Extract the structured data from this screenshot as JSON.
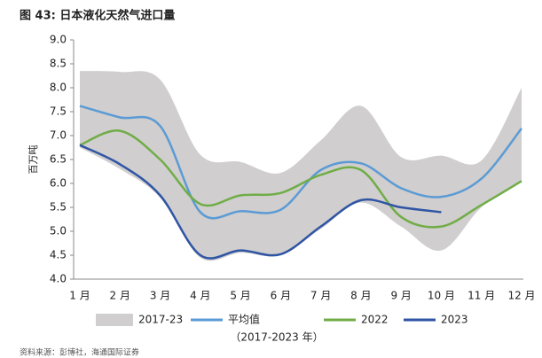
{
  "chart_data": {
    "type": "line",
    "title": "图 43: 日本液化天然气进口量",
    "y_label": "百万吨",
    "subtitle": "（2017-2023 年）",
    "source": "资料来源：彭博社，海通国际证券",
    "categories": [
      "1 月",
      "2 月",
      "3 月",
      "4 月",
      "5 月",
      "6 月",
      "7 月",
      "8 月",
      "9 月",
      "10 月",
      "11 月",
      "12 月"
    ],
    "ylim": [
      4.0,
      9.0
    ],
    "yticks": [
      {
        "value": 4.0,
        "label": "4.0"
      },
      4.5,
      {
        "value": 5.0,
        "label": "5.0"
      },
      5.5,
      {
        "value": 6.0,
        "label": "6.0"
      },
      6.5,
      {
        "value": 7.0,
        "label": "7.0"
      },
      7.5,
      {
        "value": 8.0,
        "label": "8.0"
      },
      8.5,
      {
        "value": 9.0,
        "label": "9.0"
      }
    ],
    "band": {
      "name": "2017-23",
      "color": "#d0cece",
      "high": [
        8.35,
        8.33,
        8.17,
        6.6,
        6.45,
        6.22,
        6.9,
        7.62,
        6.55,
        6.58,
        6.48,
        8.0
      ],
      "low": [
        6.75,
        6.3,
        5.7,
        4.45,
        4.55,
        4.5,
        5.05,
        5.6,
        5.1,
        4.6,
        5.5,
        6.05
      ]
    },
    "series": [
      {
        "name": "平均值",
        "color": "#5b9bd5",
        "values": [
          7.62,
          7.38,
          7.2,
          5.4,
          5.42,
          5.45,
          6.28,
          6.42,
          5.9,
          5.72,
          6.1,
          7.15
        ]
      },
      {
        "name": "2022",
        "color": "#70ad47",
        "values": [
          6.8,
          7.1,
          6.5,
          5.57,
          5.75,
          5.8,
          6.18,
          6.28,
          5.3,
          5.1,
          5.55,
          6.05
        ]
      },
      {
        "name": "2023",
        "color": "#2f55a4",
        "values": [
          6.8,
          6.4,
          5.75,
          4.5,
          4.6,
          4.52,
          5.1,
          5.65,
          5.5,
          5.4,
          null,
          null
        ]
      }
    ]
  }
}
